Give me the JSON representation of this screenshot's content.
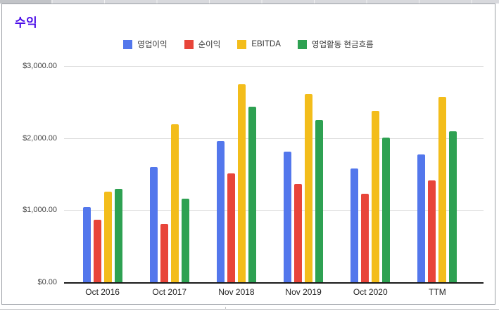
{
  "chart_data": {
    "type": "bar",
    "title": "수익",
    "title_color": "#4A0CE8",
    "legend_position": "top",
    "grid": true,
    "categories": [
      "Oct 2016",
      "Oct 2017",
      "Nov 2018",
      "Nov 2019",
      "Oct 2020",
      "TTM"
    ],
    "series": [
      {
        "name": "영업이익",
        "color": "#5377EC",
        "values": [
          1045,
          1600,
          1960,
          1810,
          1575,
          1770
        ]
      },
      {
        "name": "순이익",
        "color": "#E8453A",
        "values": [
          865,
          810,
          1510,
          1365,
          1225,
          1410
        ]
      },
      {
        "name": "EBITDA",
        "color": "#F3BD1B",
        "values": [
          1260,
          2195,
          2745,
          2610,
          2380,
          2570
        ]
      },
      {
        "name": "영업활동 현금흐름",
        "color": "#2EA152",
        "values": [
          1295,
          1160,
          2435,
          2250,
          2010,
          2095
        ]
      }
    ],
    "ylim": [
      0,
      3000
    ],
    "yticks": [
      {
        "value": 3000,
        "label": "$3,000.00"
      },
      {
        "value": 2000,
        "label": "$2,000.00"
      },
      {
        "value": 1000,
        "label": "$1,000.00"
      },
      {
        "value": 0,
        "label": "$0.00"
      }
    ],
    "gridline_color": "#dadada",
    "axis_color": "#1a1a1a"
  }
}
